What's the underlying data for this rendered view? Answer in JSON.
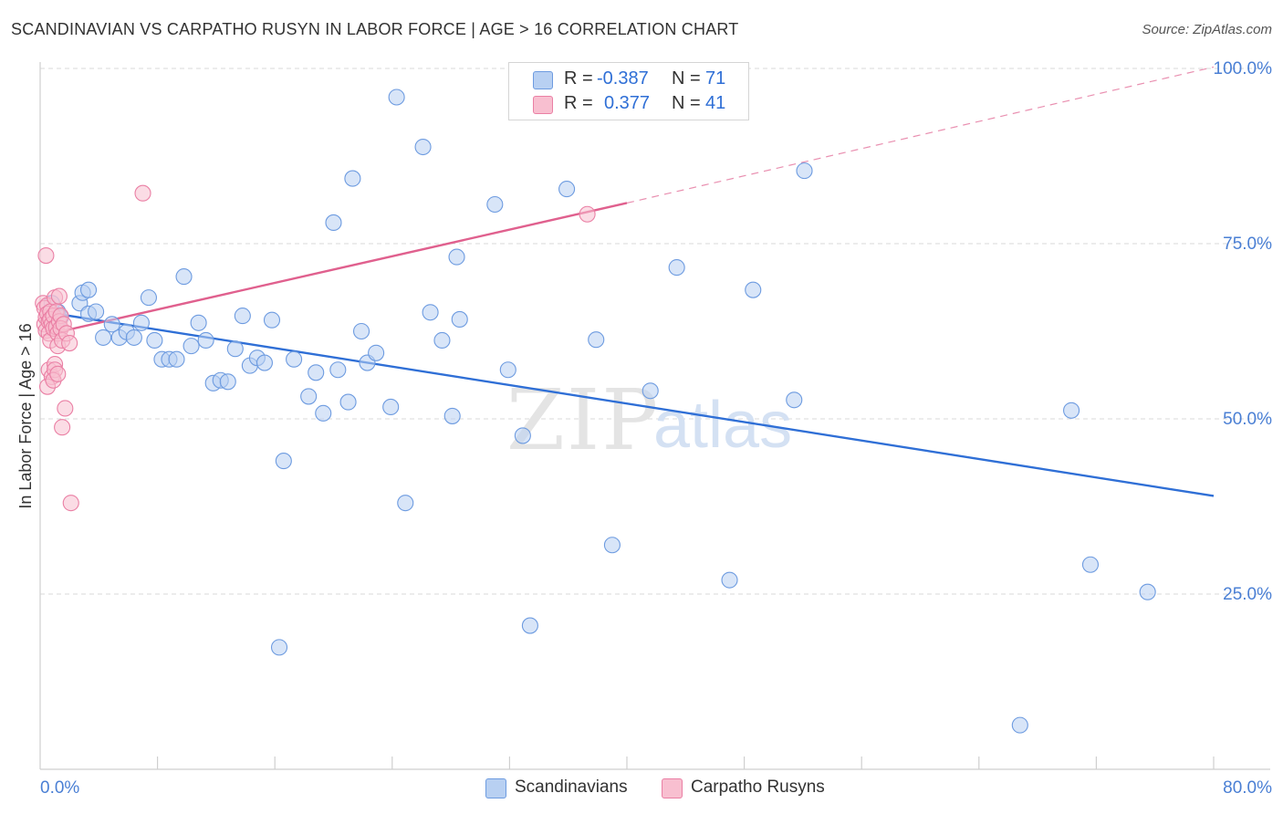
{
  "title": "SCANDINAVIAN VS CARPATHO RUSYN IN LABOR FORCE | AGE > 16 CORRELATION CHART",
  "source": "Source: ZipAtlas.com",
  "watermark": {
    "zip": "ZIP",
    "atlas": "atlas"
  },
  "colors": {
    "blue_fill": "#b8d0f2",
    "blue_stroke": "#6d9be0",
    "blue_line": "#2f6fd6",
    "pink_fill": "#f8bfd0",
    "pink_stroke": "#ea7fa4",
    "pink_line": "#e0608e",
    "grid": "#d9d9d9",
    "tick_label": "#4a7fd4"
  },
  "legend": {
    "rows": [
      {
        "r_label": "R =",
        "r_value": "-0.387",
        "n_label": "N =",
        "n_value": "71"
      },
      {
        "r_label": "R =",
        "r_value": "0.377",
        "n_label": "N =",
        "n_value": "41"
      }
    ]
  },
  "bottom_legend": {
    "series1": "Scandinavians",
    "series2": "Carpatho Rusyns"
  },
  "chart_data": {
    "type": "scatter",
    "title": "SCANDINAVIAN VS CARPATHO RUSYN IN LABOR FORCE | AGE > 16 CORRELATION CHART",
    "xlabel": "",
    "ylabel": "In Labor Force | Age > 16",
    "xlim": [
      0,
      80
    ],
    "ylim": [
      0,
      100
    ],
    "x_tick_labels": [
      "0.0%",
      "80.0%"
    ],
    "y_tick_labels": [
      "25.0%",
      "50.0%",
      "75.0%",
      "100.0%"
    ],
    "y_ticks": [
      25,
      50,
      75,
      100
    ],
    "grid": true,
    "legend_position": "top-center",
    "series": [
      {
        "name": "Scandinavians",
        "color": "#6d9be0",
        "trendline": {
          "x": [
            0.5,
            80
          ],
          "y": [
            65.2,
            39.0
          ],
          "style": "solid"
        },
        "points": [
          [
            0.8,
            66.5
          ],
          [
            1.2,
            65.3
          ],
          [
            1.4,
            64.5
          ],
          [
            2.7,
            66.5
          ],
          [
            2.9,
            68.0
          ],
          [
            3.3,
            68.4
          ],
          [
            3.3,
            65.0
          ],
          [
            3.8,
            65.3
          ],
          [
            4.3,
            61.6
          ],
          [
            4.9,
            63.5
          ],
          [
            5.4,
            61.6
          ],
          [
            5.9,
            62.4
          ],
          [
            6.4,
            61.6
          ],
          [
            6.9,
            63.7
          ],
          [
            7.4,
            67.3
          ],
          [
            7.8,
            61.2
          ],
          [
            8.3,
            58.5
          ],
          [
            8.8,
            58.5
          ],
          [
            9.3,
            58.5
          ],
          [
            9.8,
            70.3
          ],
          [
            10.3,
            60.4
          ],
          [
            10.8,
            63.7
          ],
          [
            11.3,
            61.2
          ],
          [
            11.8,
            55.1
          ],
          [
            12.3,
            55.5
          ],
          [
            12.8,
            55.3
          ],
          [
            13.3,
            60.0
          ],
          [
            13.8,
            64.7
          ],
          [
            14.3,
            57.6
          ],
          [
            14.8,
            58.7
          ],
          [
            15.3,
            58.0
          ],
          [
            15.8,
            64.1
          ],
          [
            16.3,
            17.4
          ],
          [
            16.6,
            44.0
          ],
          [
            17.3,
            58.5
          ],
          [
            18.3,
            53.2
          ],
          [
            18.8,
            56.6
          ],
          [
            19.3,
            50.8
          ],
          [
            20.0,
            78.0
          ],
          [
            20.3,
            57.0
          ],
          [
            21.0,
            52.4
          ],
          [
            21.3,
            84.3
          ],
          [
            21.9,
            62.5
          ],
          [
            22.3,
            58.0
          ],
          [
            22.9,
            59.4
          ],
          [
            23.9,
            51.7
          ],
          [
            24.3,
            95.9
          ],
          [
            24.9,
            38.0
          ],
          [
            26.1,
            88.8
          ],
          [
            26.6,
            65.2
          ],
          [
            27.4,
            61.2
          ],
          [
            28.1,
            50.4
          ],
          [
            28.4,
            73.1
          ],
          [
            28.6,
            64.2
          ],
          [
            31.0,
            80.6
          ],
          [
            31.9,
            57.0
          ],
          [
            32.9,
            47.6
          ],
          [
            33.4,
            20.5
          ],
          [
            35.9,
            82.8
          ],
          [
            37.9,
            61.3
          ],
          [
            39.0,
            32.0
          ],
          [
            41.6,
            54.0
          ],
          [
            43.4,
            71.6
          ],
          [
            47.0,
            27.0
          ],
          [
            48.6,
            68.4
          ],
          [
            51.4,
            52.7
          ],
          [
            52.1,
            85.4
          ],
          [
            70.3,
            51.2
          ],
          [
            66.8,
            6.3
          ],
          [
            71.6,
            29.2
          ],
          [
            75.5,
            25.3
          ]
        ]
      },
      {
        "name": "Carpatho Rusyns",
        "color": "#ea7fa4",
        "trendline": {
          "x": [
            0.2,
            40
          ],
          "y": [
            61.9,
            80.8
          ],
          "style": "solid",
          "extended": {
            "x": [
              40,
              80
            ],
            "y": [
              80.8,
              100.2
            ],
            "style": "dashed"
          }
        },
        "points": [
          [
            0.2,
            66.5
          ],
          [
            0.3,
            65.8
          ],
          [
            0.3,
            63.5
          ],
          [
            0.4,
            64.5
          ],
          [
            0.4,
            62.6
          ],
          [
            0.5,
            66.2
          ],
          [
            0.5,
            65.0
          ],
          [
            0.6,
            63.9
          ],
          [
            0.6,
            62.2
          ],
          [
            0.6,
            57.0
          ],
          [
            0.7,
            65.3
          ],
          [
            0.7,
            64.2
          ],
          [
            0.7,
            61.2
          ],
          [
            0.8,
            63.5
          ],
          [
            0.8,
            56.0
          ],
          [
            0.9,
            64.7
          ],
          [
            0.9,
            62.9
          ],
          [
            1.0,
            67.3
          ],
          [
            1.0,
            57.8
          ],
          [
            1.0,
            57.0
          ],
          [
            1.1,
            65.3
          ],
          [
            1.1,
            63.1
          ],
          [
            1.2,
            62.2
          ],
          [
            1.2,
            60.4
          ],
          [
            1.3,
            67.5
          ],
          [
            1.3,
            63.9
          ],
          [
            1.4,
            64.7
          ],
          [
            1.4,
            62.9
          ],
          [
            1.5,
            48.8
          ],
          [
            1.5,
            61.2
          ],
          [
            1.6,
            63.5
          ],
          [
            1.7,
            51.5
          ],
          [
            1.8,
            62.2
          ],
          [
            2.0,
            60.8
          ],
          [
            2.1,
            38.0
          ],
          [
            0.4,
            73.3
          ],
          [
            0.5,
            54.6
          ],
          [
            0.9,
            55.5
          ],
          [
            1.2,
            56.4
          ],
          [
            7.0,
            82.2
          ],
          [
            37.3,
            79.2
          ]
        ]
      }
    ]
  }
}
